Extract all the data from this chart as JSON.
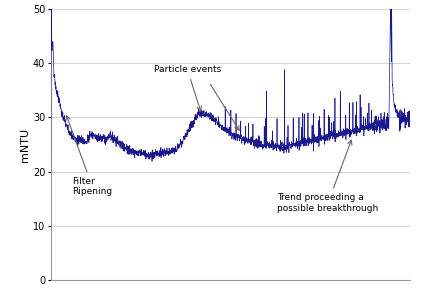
{
  "ylabel": "mNTU",
  "ylim": [
    0,
    50
  ],
  "yticks": [
    0,
    10,
    20,
    30,
    40,
    50
  ],
  "line_color": "#1a1a8c",
  "bg_color": "#ffffff",
  "grid_color": "#cccccc",
  "ann_color": "#666666",
  "ann_fs": 6.5,
  "filter_ripening_label": "Filter\nRipening",
  "particle_events_label": "Particle events",
  "trend_label": "Trend proceeding a\npossible breakthrough"
}
